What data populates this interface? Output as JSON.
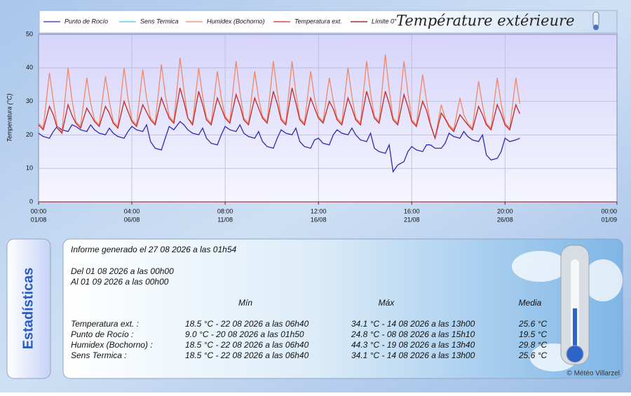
{
  "chart_data": {
    "type": "line",
    "title": "Température extérieure",
    "ylabel": "Temperatura (°C)",
    "xlim": [
      "01/08 00:00",
      "01/09 00:00"
    ],
    "xticks": [
      {
        "value": "01/08 00:00",
        "label": "00:00",
        "date": "01/08"
      },
      {
        "value": "06/08 00:00",
        "label": "04:00",
        "date": "06/08"
      },
      {
        "value": "11/08 00:00",
        "label": "08:00",
        "date": "11/08"
      },
      {
        "value": "16/08 00:00",
        "label": "12:00",
        "date": "16/08"
      },
      {
        "value": "21/08 00:00",
        "label": "16:00",
        "date": "21/08"
      },
      {
        "value": "26/08 00:00",
        "label": "20:00",
        "date": "26/08"
      },
      {
        "value": "01/09 00:00",
        "label": "00:00",
        "date": "01/09"
      }
    ],
    "ylim": [
      0,
      50
    ],
    "yticks": [
      0,
      10,
      20,
      30,
      40,
      50
    ],
    "grid": true,
    "x": [
      "01/08 00:00",
      "01/08 06:00",
      "01/08 14:00",
      "01/08 19:00",
      "02/08 00:00",
      "02/08 06:00",
      "02/08 14:00",
      "02/08 19:00",
      "03/08 00:00",
      "03/08 06:00",
      "03/08 14:00",
      "03/08 19:00",
      "04/08 00:00",
      "04/08 06:00",
      "04/08 14:00",
      "04/08 19:00",
      "05/08 00:00",
      "05/08 06:00",
      "05/08 14:00",
      "05/08 19:00",
      "06/08 00:00",
      "06/08 06:00",
      "06/08 14:00",
      "06/08 19:00",
      "07/08 00:00",
      "07/08 06:00",
      "07/08 14:00",
      "07/08 19:00",
      "08/08 00:00",
      "08/08 06:00",
      "08/08 14:00",
      "08/08 19:00",
      "09/08 00:00",
      "09/08 06:00",
      "09/08 14:00",
      "09/08 19:00",
      "10/08 00:00",
      "10/08 06:00",
      "10/08 14:00",
      "10/08 19:00",
      "11/08 00:00",
      "11/08 06:00",
      "11/08 14:00",
      "11/08 19:00",
      "12/08 00:00",
      "12/08 06:00",
      "12/08 14:00",
      "12/08 19:00",
      "13/08 00:00",
      "13/08 06:00",
      "13/08 14:00",
      "13/08 19:00",
      "14/08 00:00",
      "14/08 06:00",
      "14/08 14:00",
      "14/08 19:00",
      "15/08 00:00",
      "15/08 06:00",
      "15/08 14:00",
      "15/08 19:00",
      "16/08 00:00",
      "16/08 06:00",
      "16/08 14:00",
      "16/08 19:00",
      "17/08 00:00",
      "17/08 06:00",
      "17/08 14:00",
      "17/08 19:00",
      "18/08 00:00",
      "18/08 06:00",
      "18/08 14:00",
      "18/08 19:00",
      "19/08 00:00",
      "19/08 06:00",
      "19/08 14:00",
      "19/08 19:00",
      "20/08 00:00",
      "20/08 06:00",
      "20/08 14:00",
      "20/08 19:00",
      "21/08 00:00",
      "21/08 06:00",
      "21/08 14:00",
      "21/08 19:00",
      "22/08 00:00",
      "22/08 06:00",
      "22/08 14:00",
      "22/08 19:00",
      "23/08 00:00",
      "23/08 06:00",
      "23/08 14:00",
      "23/08 19:00",
      "24/08 00:00",
      "24/08 06:00",
      "24/08 14:00",
      "24/08 19:00",
      "25/08 00:00",
      "25/08 06:00",
      "25/08 14:00",
      "25/08 19:00",
      "26/08 00:00",
      "26/08 06:00",
      "26/08 14:00",
      "26/08 19:00"
    ],
    "series": [
      {
        "name": "Punto de Rocío",
        "color": "#2c2cb0",
        "values": [
          20.5,
          19.5,
          19,
          21,
          22.5,
          21.5,
          21,
          23,
          22.5,
          21.5,
          21,
          23,
          21.5,
          20.5,
          20,
          22,
          20.5,
          19.5,
          19,
          21,
          22.5,
          21.5,
          21,
          23,
          18,
          16,
          15.5,
          19,
          22.5,
          21.5,
          24,
          23,
          21.5,
          20.5,
          20,
          22,
          19,
          17.5,
          17,
          20,
          22.5,
          21.5,
          21,
          23,
          20.5,
          19.5,
          19,
          21,
          18,
          16.5,
          16,
          19,
          21.5,
          20.5,
          20,
          22,
          18,
          16.5,
          16,
          18.5,
          19,
          17.5,
          17,
          20,
          21.5,
          20.5,
          20,
          22,
          20,
          18.5,
          18,
          20.5,
          16,
          15,
          14.5,
          17,
          9,
          11,
          12,
          15,
          16.5,
          15.5,
          15,
          17,
          17,
          16,
          16,
          17.5,
          20.5,
          19.5,
          19,
          21,
          19.5,
          18.5,
          18,
          20,
          14,
          12.5,
          13,
          15,
          19,
          18,
          18.5,
          19
        ]
      },
      {
        "name": "Sens Termica",
        "color": "#40c8d8",
        "values": [
          23,
          21.5,
          28.5,
          26,
          22,
          20.5,
          29,
          25.8,
          23.5,
          22,
          28,
          26,
          24,
          22.5,
          28.5,
          26.5,
          23.5,
          22,
          30,
          27,
          24,
          22.5,
          29,
          26.8,
          24.5,
          23,
          31,
          28,
          25,
          23.5,
          34,
          29.8,
          25,
          23,
          33,
          29,
          24.5,
          23,
          31,
          28,
          25,
          23.5,
          32,
          28.8,
          24.5,
          23,
          31,
          28,
          25,
          23.5,
          33,
          29.3,
          24.5,
          23,
          34,
          29.5,
          24.5,
          23,
          31,
          28,
          25,
          23.5,
          30,
          27.8,
          24.5,
          23,
          31,
          28,
          24.5,
          23,
          33,
          29,
          25,
          23.5,
          33,
          29.3,
          24.5,
          23,
          32,
          28.5,
          24,
          22.5,
          30,
          27.3,
          23,
          19,
          26.5,
          24.8,
          22.5,
          21,
          26,
          24.5,
          23,
          21.5,
          28.5,
          26,
          23,
          21.5,
          29,
          26.3,
          23,
          21.5,
          29,
          26.3
        ]
      },
      {
        "name": "Humidex (Bochorno)",
        "color": "#f08868",
        "values": [
          23.5,
          22,
          38.5,
          30,
          22.5,
          21,
          40,
          30.3,
          24,
          22.5,
          37,
          29.5,
          24.5,
          23,
          37.5,
          30,
          24,
          22.5,
          40,
          31,
          24.5,
          23,
          39.5,
          31,
          25,
          23.5,
          41,
          32,
          25.5,
          24,
          43,
          33.3,
          25,
          23.5,
          40,
          31.5,
          25,
          23.5,
          39,
          31,
          25.5,
          24,
          42,
          32.8,
          25,
          23.5,
          39,
          31,
          25.5,
          24,
          42,
          32.8,
          25,
          23.5,
          42,
          32.5,
          25,
          23.5,
          39,
          31,
          25.5,
          24,
          37,
          30.3,
          25,
          23.5,
          40,
          31.5,
          25,
          23.5,
          42,
          32.5,
          25.5,
          24,
          44,
          33.3,
          25,
          23.5,
          42,
          32.5,
          24.5,
          23,
          38,
          30.3,
          23.5,
          19,
          29,
          25,
          23,
          21.5,
          31,
          26,
          23.5,
          22,
          36,
          28.8,
          23.5,
          22,
          37,
          29.3,
          23.5,
          22,
          37,
          29.3
        ]
      },
      {
        "name": "Temperatura ext.",
        "color": "#d42a2a",
        "values": [
          23,
          21.5,
          28.5,
          26,
          22,
          20.5,
          29,
          25.8,
          23.5,
          22,
          28,
          26,
          24,
          22.5,
          28.5,
          26.5,
          23.5,
          22,
          30,
          27,
          24,
          22.5,
          29,
          26.8,
          24.5,
          23,
          31,
          28,
          25,
          23.5,
          34,
          29.8,
          25,
          23,
          33,
          29,
          24.5,
          23,
          31,
          28,
          25,
          23.5,
          32,
          28.8,
          24.5,
          23,
          31,
          28,
          25,
          23.5,
          33,
          29.3,
          24.5,
          23,
          34,
          29.5,
          24.5,
          23,
          31,
          28,
          25,
          23.5,
          30,
          27.8,
          24.5,
          23,
          31,
          28,
          24.5,
          23,
          33,
          29,
          25,
          23.5,
          33,
          29.3,
          24.5,
          23,
          32,
          28.5,
          24,
          22.5,
          30,
          27.3,
          23,
          19,
          26.5,
          24.8,
          22.5,
          21,
          26,
          24.5,
          23,
          21.5,
          28.5,
          26,
          23,
          21.5,
          29,
          26.3,
          23,
          21.5,
          29,
          26.3
        ]
      },
      {
        "name": "Límite 0°",
        "color": "#a00018",
        "value": 0
      }
    ]
  },
  "stats": {
    "tab": "Estadísticas",
    "generated": "Informe generado el 27 08 2026 a las 01h54",
    "from": "Del 01 08 2026 a las 00h00",
    "to": "Al 01 09 2026 a las 00h00",
    "headers": [
      "Mín",
      "Máx",
      "Media"
    ],
    "rows": [
      [
        "Temperatura ext. :",
        "18.5 °C - 22 08 2026 a las 06h40",
        "34.1 °C - 14 08 2026 a las 13h00",
        "25.6 °C"
      ],
      [
        "Punto de Rocío :",
        "9.0 °C - 20 08 2026 a las 01h50",
        "24.8 °C - 08 08 2026 a las 15h10",
        "19.5 °C"
      ],
      [
        "Humidex (Bochorno) :",
        "18.5 °C - 22 08 2026 a las 06h40",
        "44.3 °C - 19 08 2026 a las 13h40",
        "29.8 °C"
      ],
      [
        "Sens Termica :",
        "18.5 °C - 22 08 2026 a las 06h40",
        "34.1 °C - 14 08 2026 a las 13h00",
        "25.6 °C"
      ]
    ],
    "credit": "© Météo Villarzel"
  }
}
